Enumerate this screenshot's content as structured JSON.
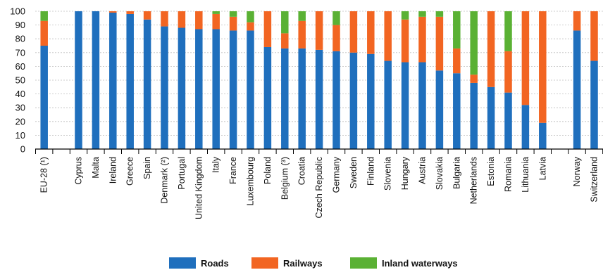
{
  "chart_data": {
    "type": "bar",
    "stacked": true,
    "title": "",
    "xlabel": "",
    "ylabel": "",
    "ylim": [
      0,
      100
    ],
    "yticks": [
      0,
      10,
      20,
      30,
      40,
      50,
      60,
      70,
      80,
      90,
      100
    ],
    "grid": "horizontal dashed",
    "legend_position": "bottom",
    "categories": [
      "EU-28 (¹)",
      "",
      "Cyprus",
      "Malta",
      "Ireland",
      "Greece",
      "Spain",
      "Denmark (²)",
      "Portugal",
      "United Kingdom",
      "Italy",
      "France",
      "Luxembourg",
      "Poland",
      "Belgium (³)",
      "Croatia",
      "Czech Republic",
      "Germany",
      "Sweden",
      "Finland",
      "Slovenia",
      "Hungary",
      "Austria",
      "Slovakia",
      "Bulgaria",
      "Netherlands",
      "Estonia",
      "Romania",
      "Lithuania",
      "Latvia",
      "",
      "Norway",
      "Switzerland"
    ],
    "series": [
      {
        "name": "Roads",
        "color": "#1f6fbd",
        "values": [
          75,
          null,
          100,
          100,
          99,
          98,
          94,
          89,
          88,
          87,
          87,
          86,
          86,
          74,
          73,
          73,
          72,
          71,
          70,
          69,
          64,
          63,
          63,
          57,
          55,
          48,
          45,
          41,
          32,
          19,
          null,
          86,
          64
        ]
      },
      {
        "name": "Railways",
        "color": "#f26522",
        "values": [
          18,
          null,
          0,
          0,
          1,
          2,
          6,
          11,
          12,
          13,
          11,
          10,
          6,
          26,
          11,
          20,
          28,
          19,
          30,
          31,
          36,
          31,
          33,
          39,
          18,
          6,
          55,
          30,
          68,
          81,
          null,
          14,
          36
        ]
      },
      {
        "name": "Inland waterways",
        "color": "#5ab134",
        "values": [
          7,
          null,
          0,
          0,
          0,
          0,
          0,
          0,
          0,
          0,
          2,
          4,
          8,
          0,
          16,
          7,
          0,
          10,
          0,
          0,
          0,
          6,
          4,
          4,
          27,
          46,
          0,
          29,
          0,
          0,
          null,
          0,
          0
        ]
      }
    ]
  }
}
